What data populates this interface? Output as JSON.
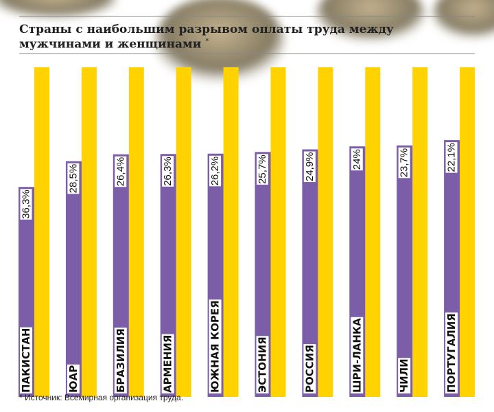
{
  "title": "Страны с наибольшим разрывом оплаты труда между мужчинами и женщинами",
  "title_note": "*",
  "source": "* Источник: Всемирная организация труда.",
  "chart_data": {
    "type": "gap-bar",
    "categories": [
      "ПАКИСТАН",
      "ЮАР",
      "БРАЗИЛИЯ",
      "АРМЕНИЯ",
      "ЮЖНАЯ КОРЕЯ",
      "ЭСТОНИЯ",
      "РОССИЯ",
      "ШРИ-ЛАНКА",
      "ЧИЛИ",
      "ПОРТУГАЛИЯ"
    ],
    "values": [
      36.3,
      28.5,
      26.4,
      26.3,
      26.2,
      25.7,
      24.9,
      24,
      23.7,
      22.1
    ],
    "value_labels": [
      "36,3%",
      "28,5%",
      "26,4%",
      "26,3%",
      "26,2%",
      "25,7%",
      "24,9%",
      "24%",
      "23,7%",
      "22,1%"
    ],
    "color": "#7b5ea7",
    "reference_color": "#ffd200",
    "ylim": [
      0,
      100
    ]
  }
}
